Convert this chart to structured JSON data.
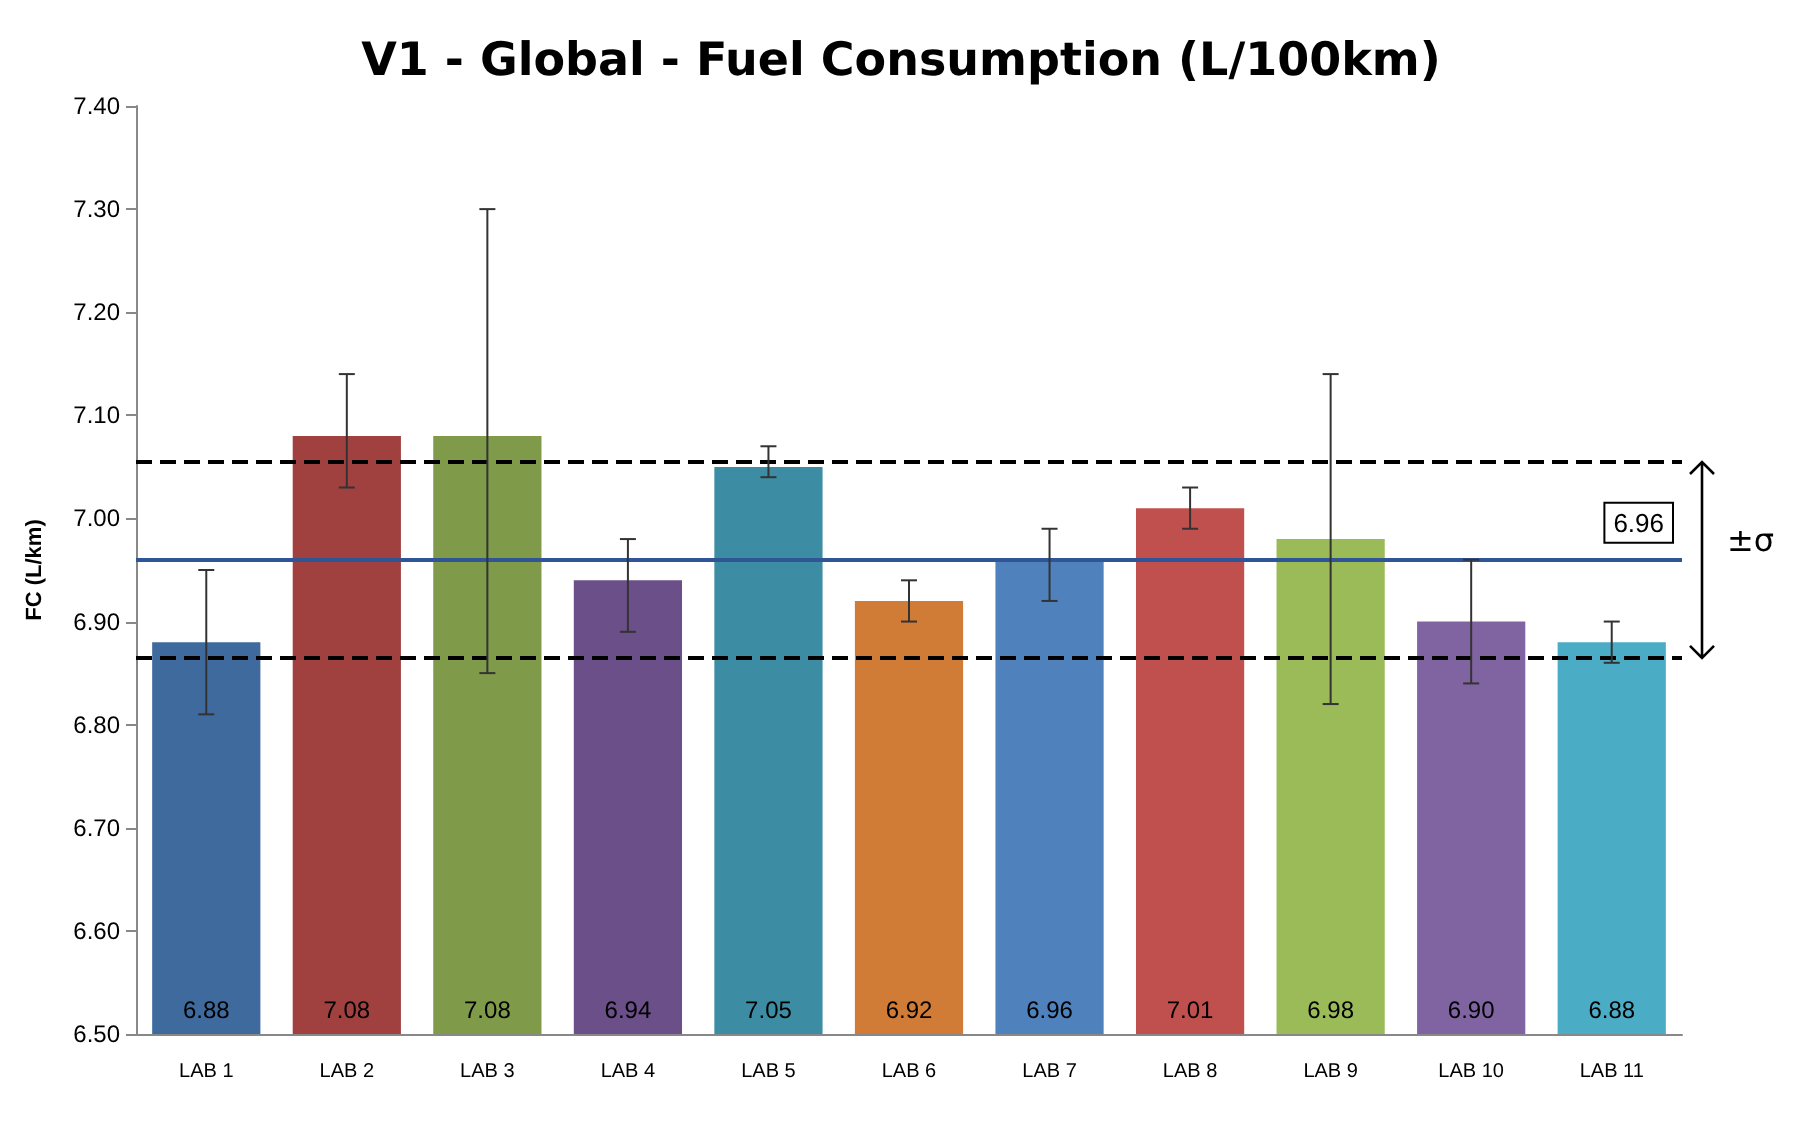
{
  "chart_data": {
    "type": "bar",
    "title": "V1 - Global - Fuel Consumption (L/100km)",
    "ylabel": "FC (L/km)",
    "categories": [
      "LAB 1",
      "LAB 2",
      "LAB 3",
      "LAB 4",
      "LAB 5",
      "LAB 6",
      "LAB 7",
      "LAB 8",
      "LAB 9",
      "LAB 10",
      "LAB 11"
    ],
    "values": [
      6.88,
      7.08,
      7.08,
      6.94,
      7.05,
      6.92,
      6.96,
      7.01,
      6.98,
      6.9,
      6.88
    ],
    "colors": [
      "#3f6a9e",
      "#a04140",
      "#7f9a48",
      "#6a4f88",
      "#3c8da3",
      "#d07c36",
      "#4f81bd",
      "#c0504d",
      "#9bbb59",
      "#8064a2",
      "#4bacc6"
    ],
    "errors": [
      [
        6.81,
        6.95
      ],
      [
        7.03,
        7.14
      ],
      [
        6.85,
        7.3
      ],
      [
        6.89,
        6.98
      ],
      [
        7.04,
        7.07
      ],
      [
        6.9,
        6.94
      ],
      [
        6.92,
        6.99
      ],
      [
        6.99,
        7.03
      ],
      [
        6.82,
        7.14
      ],
      [
        6.84,
        6.96
      ],
      [
        6.86,
        6.9
      ]
    ],
    "value_labels": [
      "6.88",
      "7.08",
      "7.08",
      "6.94",
      "7.05",
      "6.92",
      "6.96",
      "7.01",
      "6.98",
      "6.90",
      "6.88"
    ],
    "ylim": [
      6.5,
      7.4
    ],
    "yticks": [
      {
        "value": 6.5,
        "label": "6.50"
      },
      {
        "value": 6.6,
        "label": "6.60"
      },
      {
        "value": 6.7,
        "label": "6.70"
      },
      {
        "value": 6.8,
        "label": "6.80"
      },
      {
        "value": 6.9,
        "label": "6.90"
      },
      {
        "value": 7.0,
        "label": "7.00"
      },
      {
        "value": 7.1,
        "label": "7.10"
      },
      {
        "value": 7.2,
        "label": "7.20"
      },
      {
        "value": 7.3,
        "label": "7.30"
      },
      {
        "value": 7.4,
        "label": "7.40"
      }
    ],
    "ref_lines": [
      {
        "axis": "y",
        "value": 6.96,
        "label": "6.96",
        "color": "#2f5597",
        "line_style": "solid"
      },
      {
        "axis": "y",
        "value": 7.055,
        "color": "#000000",
        "line_style": "dashed"
      },
      {
        "axis": "y",
        "value": 6.865,
        "color": "#000000",
        "line_style": "dashed"
      }
    ],
    "annotations": [
      "±σ"
    ],
    "grid": false
  }
}
